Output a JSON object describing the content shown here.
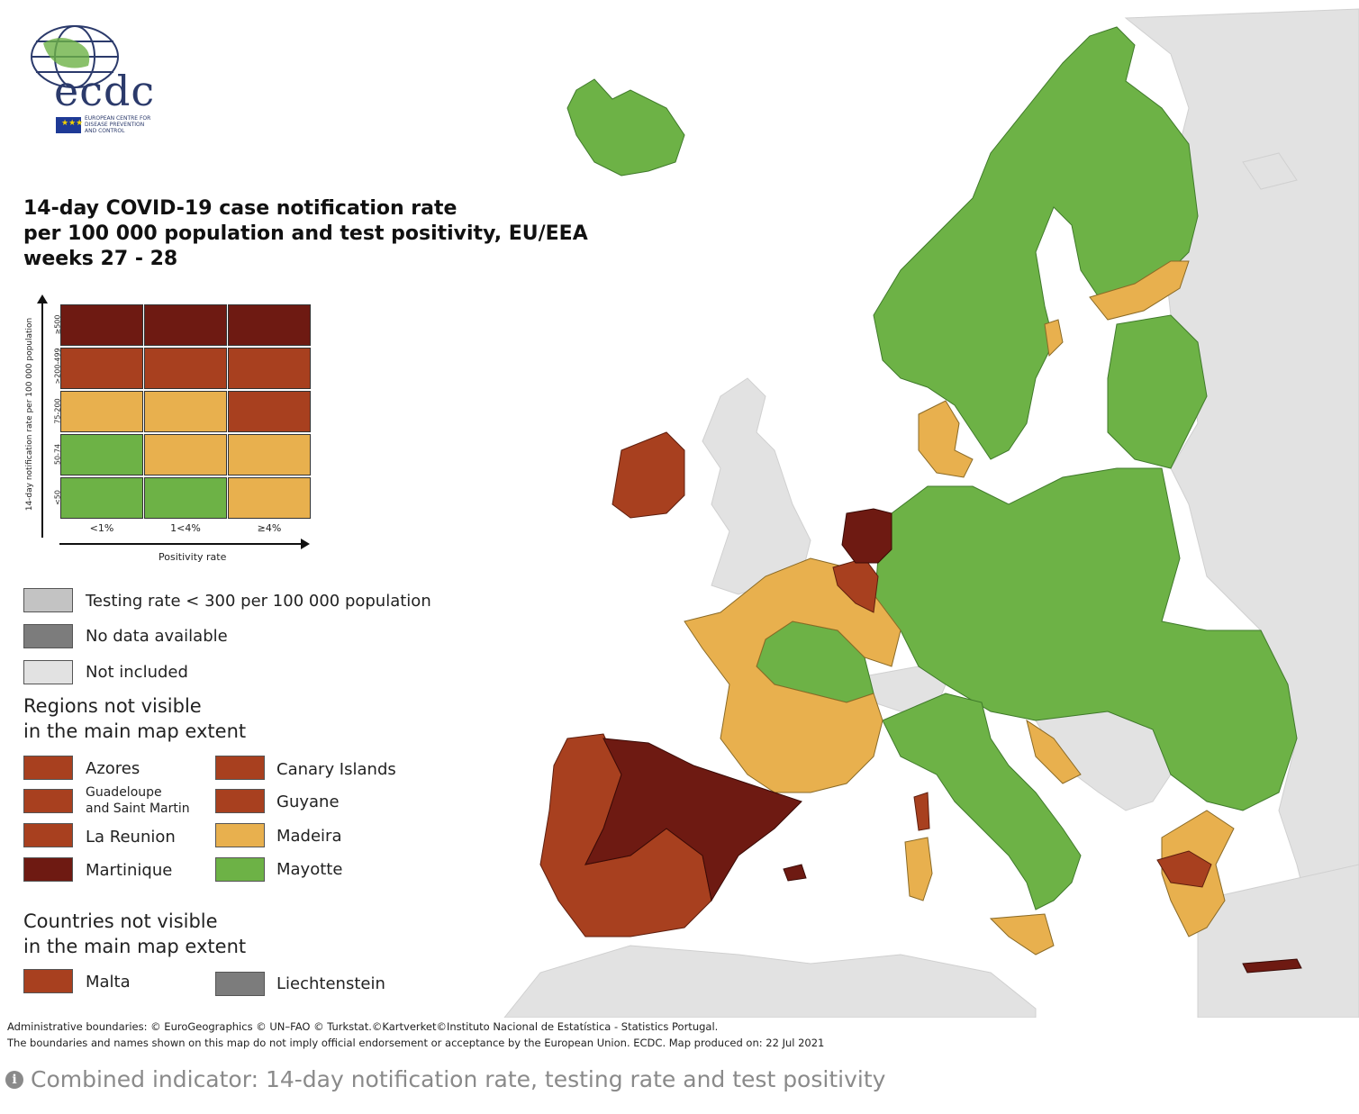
{
  "colors": {
    "green": "#6db246",
    "yellow": "#e8b04e",
    "orange": "#a8401f",
    "darkred": "#6e1a12",
    "not_included": "#e2e2e2",
    "testing_rate": "#c3c3c3",
    "no_data": "#7c7c7c",
    "sea": "#ffffff"
  },
  "logo": {
    "text": "ecdc",
    "agency_line1": "EUROPEAN CENTRE FOR",
    "agency_line2": "DISEASE PREVENTION",
    "agency_line3": "AND CONTROL"
  },
  "title": {
    "line1": "14-day COVID-19 case notification rate",
    "line2": "per 100 000 population and test positivity, EU/EEA",
    "line3": "weeks 27 - 28"
  },
  "matrix": {
    "y_axis_label": "14-day notification rate per 100 000 population",
    "x_axis_label": "Positivity rate",
    "rows": [
      "≥500",
      ">200-499",
      "75-200",
      "50-74",
      "<50"
    ],
    "cols": [
      "<1%",
      "1<4%",
      "≥4%"
    ],
    "cells": [
      [
        "darkred",
        "darkred",
        "darkred"
      ],
      [
        "orange",
        "orange",
        "orange"
      ],
      [
        "yellow",
        "yellow",
        "orange"
      ],
      [
        "green",
        "yellow",
        "yellow"
      ],
      [
        "green",
        "green",
        "yellow"
      ]
    ]
  },
  "legend": {
    "testing_rate": "Testing rate < 300 per 100 000 population",
    "no_data": "No data available",
    "not_included": "Not included"
  },
  "regions": {
    "heading_line1": "Regions not visible",
    "heading_line2": "in the main map extent",
    "items": [
      {
        "label": "Azores",
        "color": "orange"
      },
      {
        "label": "Canary Islands",
        "color": "orange"
      },
      {
        "label": "Guadeloupe and Saint Martin",
        "line1": "Guadeloupe",
        "line2": "and Saint Martin",
        "color": "orange"
      },
      {
        "label": "Guyane",
        "color": "orange"
      },
      {
        "label": "La Reunion",
        "color": "orange"
      },
      {
        "label": "Madeira",
        "color": "yellow"
      },
      {
        "label": "Martinique",
        "color": "darkred"
      },
      {
        "label": "Mayotte",
        "color": "green"
      }
    ]
  },
  "countries": {
    "heading_line1": "Countries not visible",
    "heading_line2": "in the main map extent",
    "items": [
      {
        "label": "Malta",
        "color": "orange"
      },
      {
        "label": "Liechtenstein",
        "color": "no_data"
      }
    ]
  },
  "footer": {
    "line1": "Administrative boundaries: © EuroGeographics © UN–FAO © Turkstat.©Kartverket©Instituto Nacional de Estatística - Statistics Portugal.",
    "line2": "The boundaries and names shown on this map do not imply official endorsement or acceptance by the European Union. ECDC. Map produced on: 22 Jul 2021"
  },
  "caption": {
    "icon": "info-icon",
    "text": "Combined indicator: 14-day notification rate, testing rate and test positivity"
  }
}
